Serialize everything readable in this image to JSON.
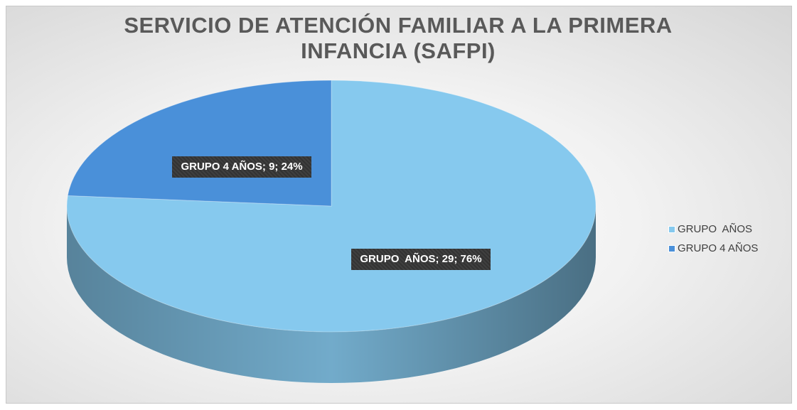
{
  "chart_data": {
    "type": "pie",
    "title": "SERVICIO DE ATENCIÓN FAMILIAR A LA PRIMERA INFANCIA (SAFPI)",
    "categories": [
      "GRUPO  AÑOS",
      "GRUPO 4 AÑOS"
    ],
    "values": [
      29,
      9
    ],
    "value_labels": [
      "GRUPO  AÑOS; 29; 76%",
      "GRUPO 4 AÑOS; 9; 24%"
    ],
    "colors": [
      "#86c9ee",
      "#4a90d9"
    ],
    "legend": "right"
  }
}
